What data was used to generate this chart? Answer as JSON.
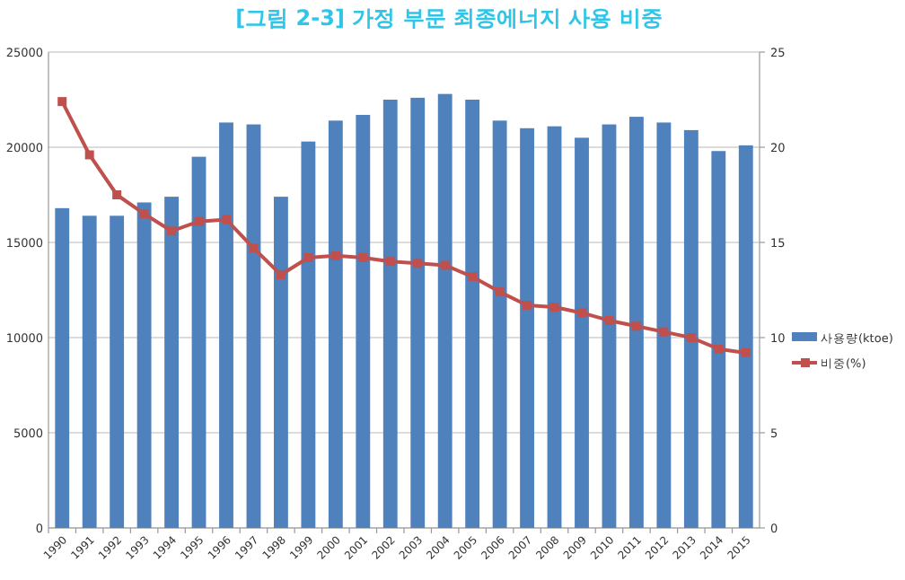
{
  "chart_data": {
    "type": "bar",
    "title": "[그림 2-3] 가정 부문 최종에너지 사용 비중",
    "categories": [
      "1990",
      "1991",
      "1992",
      "1993",
      "1994",
      "1995",
      "1996",
      "1997",
      "1998",
      "1999",
      "2000",
      "2001",
      "2002",
      "2003",
      "2004",
      "2005",
      "2006",
      "2007",
      "2008",
      "2009",
      "2010",
      "2011",
      "2012",
      "2013",
      "2014",
      "2015"
    ],
    "series": [
      {
        "name": "사용량(ktoe)",
        "color": "#4f81bd",
        "values": [
          16800,
          16400,
          16400,
          17100,
          17400,
          19500,
          21300,
          21200,
          17400,
          20300,
          21400,
          21700,
          22500,
          22600,
          22800,
          22500,
          21400,
          21000,
          21100,
          20500,
          21200,
          21600,
          21300,
          20900,
          19800,
          20100
        ]
      },
      {
        "name": "비중(%)",
        "type": "line",
        "axis": "y2",
        "color": "#c0504d",
        "marker": "square",
        "values": [
          22.4,
          19.6,
          17.5,
          16.5,
          15.6,
          16.1,
          16.2,
          14.7,
          13.3,
          14.2,
          14.3,
          14.2,
          14.0,
          13.9,
          13.8,
          13.2,
          12.4,
          11.7,
          11.6,
          11.3,
          10.9,
          10.6,
          10.3,
          10.0,
          9.4,
          9.2
        ]
      }
    ],
    "ylim": [
      0,
      25000
    ],
    "yticks": [
      0,
      5000,
      10000,
      15000,
      20000,
      25000
    ],
    "y2lim": [
      0,
      25
    ],
    "y2ticks": [
      0,
      5,
      10,
      15,
      20,
      25
    ],
    "grid": "y",
    "legend": "right"
  }
}
